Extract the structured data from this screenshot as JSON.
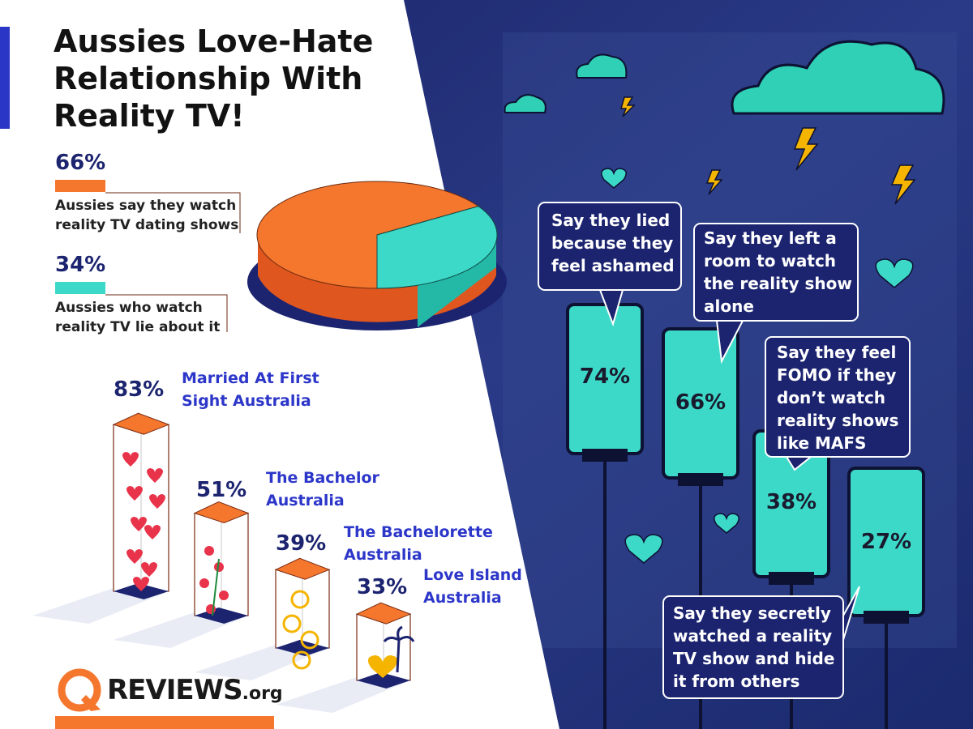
{
  "title": "Aussies Love-Hate Relationship With Reality TV!",
  "title_lines": [
    "Aussies Love-Hate",
    "Relationship With",
    "Reality TV!"
  ],
  "legend": [
    {
      "value": "66%",
      "label_lines": [
        "Aussies say they watch",
        "reality TV dating shows"
      ],
      "color": "#f5762d"
    },
    {
      "value": "34%",
      "label_lines": [
        "Aussies who watch",
        "reality TV lie about it"
      ],
      "color": "#3dd9c8"
    }
  ],
  "shows": [
    {
      "value": "83%",
      "label_lines": [
        "Married At First",
        "Sight Australia"
      ]
    },
    {
      "value": "51%",
      "label_lines": [
        "The Bachelor",
        "Australia"
      ]
    },
    {
      "value": "39%",
      "label_lines": [
        "The Bachelorette",
        "Australia"
      ]
    },
    {
      "value": "33%",
      "label_lines": [
        "Love Island",
        "Australia"
      ]
    }
  ],
  "phones": [
    {
      "value": "74%",
      "bubble_lines": [
        "Say they lied",
        "because they",
        "feel ashamed"
      ]
    },
    {
      "value": "66%",
      "bubble_lines": [
        "Say they left a",
        "room to watch",
        "the reality show",
        "alone"
      ]
    },
    {
      "value": "38%",
      "bubble_lines": [
        "Say they feel",
        "FOMO if they",
        "don’t watch",
        "reality shows",
        "like MAFS"
      ]
    },
    {
      "value": "27%",
      "bubble_lines": [
        "Say they secretly",
        "watched a reality",
        "TV show and hide",
        "it from others"
      ]
    }
  ],
  "logo": {
    "brand": "REVIEWS",
    "suffix": ".org"
  },
  "chart_data": [
    {
      "type": "pie",
      "categories": [
        "Aussies say they watch reality TV dating shows",
        "Aussies who watch reality TV lie about it"
      ],
      "values": [
        66,
        34
      ],
      "colors": [
        "#f5762d",
        "#3dd9c8"
      ]
    },
    {
      "type": "bar",
      "categories": [
        "Married At First Sight Australia",
        "The Bachelor Australia",
        "The Bachelorette Australia",
        "Love Island Australia"
      ],
      "values": [
        83,
        51,
        39,
        33
      ]
    },
    {
      "type": "bar",
      "categories": [
        "Say they lied because they feel ashamed",
        "Say they left a room to watch the reality show alone",
        "Say they feel FOMO if they don’t watch reality shows like MAFS",
        "Say they secretly watched a reality TV show and hide it from others"
      ],
      "values": [
        74,
        66,
        38,
        27
      ]
    }
  ],
  "colors": {
    "orange": "#f5762d",
    "teal": "#3dd9c8",
    "navy": "#1c2470",
    "blue_label": "#2c36c9",
    "accent_bar": "#2a37c6"
  }
}
